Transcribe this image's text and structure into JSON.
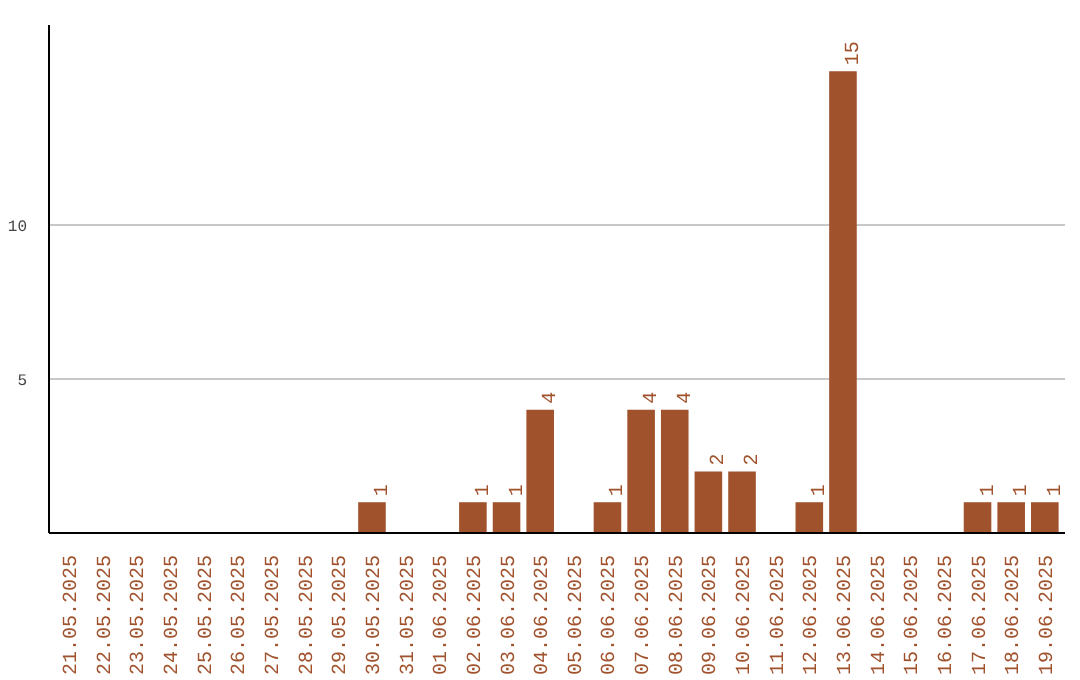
{
  "chart_data": {
    "type": "bar",
    "categories": [
      "21.05.2025",
      "22.05.2025",
      "23.05.2025",
      "24.05.2025",
      "25.05.2025",
      "26.05.2025",
      "27.05.2025",
      "28.05.2025",
      "29.05.2025",
      "30.05.2025",
      "31.05.2025",
      "01.06.2025",
      "02.06.2025",
      "03.06.2025",
      "04.06.2025",
      "05.06.2025",
      "06.06.2025",
      "07.06.2025",
      "08.06.2025",
      "09.06.2025",
      "10.06.2025",
      "11.06.2025",
      "12.06.2025",
      "13.06.2025",
      "14.06.2025",
      "15.06.2025",
      "16.06.2025",
      "17.06.2025",
      "18.06.2025",
      "19.06.2025"
    ],
    "values": [
      0,
      0,
      0,
      0,
      0,
      0,
      0,
      0,
      0,
      1,
      0,
      0,
      1,
      1,
      4,
      0,
      1,
      4,
      4,
      2,
      2,
      0,
      1,
      15,
      0,
      0,
      0,
      1,
      1,
      1
    ],
    "value_labels": [
      null,
      null,
      null,
      null,
      null,
      null,
      null,
      null,
      null,
      "1",
      null,
      null,
      "1",
      "1",
      "4",
      null,
      "1",
      "4",
      "4",
      "2",
      "2",
      null,
      "1",
      "15",
      null,
      null,
      null,
      "1",
      "1",
      "1"
    ],
    "color": "#a0522d",
    "ylim": [
      0,
      16.5
    ],
    "yticks": [
      5,
      10
    ],
    "grid": "y"
  }
}
